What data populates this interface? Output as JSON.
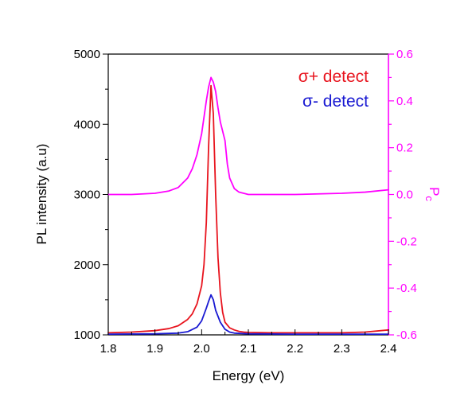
{
  "chart_data": {
    "type": "line",
    "xlabel": "Energy (eV)",
    "ylabel_left": "PL intensity (a.u)",
    "ylabel_right": "P",
    "ylabel_right_sub": "c",
    "xlim": [
      1.8,
      2.4
    ],
    "ylim_left": [
      1000,
      5000
    ],
    "ylim_right": [
      -0.6,
      0.6
    ],
    "x_ticks": [
      "1.8",
      "1.9",
      "2.0",
      "2.1",
      "2.2",
      "2.3",
      "2.4"
    ],
    "y_ticks_left": [
      "1000",
      "2000",
      "3000",
      "4000",
      "5000"
    ],
    "y_ticks_right": [
      "-0.6",
      "-0.4",
      "-0.2",
      "0.0",
      "0.2",
      "0.4",
      "0.6"
    ],
    "colors": {
      "sigma_plus": "#e8141e",
      "sigma_minus": "#1a1ad2",
      "pc": "#ff00ff",
      "axis": "#000000"
    },
    "legend": [
      {
        "label": "σ+ detect",
        "color": "#e8141e"
      },
      {
        "label": "σ-  detect",
        "color": "#1a1ad2"
      }
    ],
    "series": [
      {
        "name": "σ+ detect",
        "axis": "left",
        "x": [
          1.8,
          1.85,
          1.9,
          1.93,
          1.95,
          1.97,
          1.98,
          1.99,
          2.0,
          2.005,
          2.01,
          2.015,
          2.02,
          2.025,
          2.03,
          2.035,
          2.04,
          2.045,
          2.05,
          2.06,
          2.07,
          2.08,
          2.09,
          2.1,
          2.15,
          2.2,
          2.3,
          2.35,
          2.4
        ],
        "y": [
          1030,
          1040,
          1060,
          1090,
          1130,
          1220,
          1300,
          1440,
          1700,
          2000,
          2600,
          3700,
          4550,
          4150,
          3000,
          2100,
          1600,
          1320,
          1180,
          1100,
          1070,
          1050,
          1040,
          1035,
          1030,
          1030,
          1030,
          1040,
          1070
        ]
      },
      {
        "name": "σ-  detect",
        "axis": "left",
        "x": [
          1.8,
          1.9,
          1.95,
          1.97,
          1.99,
          2.0,
          2.01,
          2.015,
          2.02,
          2.025,
          2.03,
          2.04,
          2.05,
          2.06,
          2.07,
          2.1,
          2.2,
          2.4
        ],
        "y": [
          1010,
          1015,
          1025,
          1045,
          1110,
          1200,
          1380,
          1480,
          1570,
          1500,
          1350,
          1180,
          1080,
          1040,
          1025,
          1015,
          1010,
          1010
        ]
      },
      {
        "name": "P",
        "axis": "right",
        "x": [
          1.8,
          1.85,
          1.9,
          1.93,
          1.95,
          1.97,
          1.98,
          1.99,
          2.0,
          2.01,
          2.015,
          2.02,
          2.025,
          2.03,
          2.035,
          2.04,
          2.05,
          2.055,
          2.06,
          2.07,
          2.08,
          2.09,
          2.1,
          2.15,
          2.2,
          2.3,
          2.35,
          2.4
        ],
        "y": [
          0.0,
          0.0,
          0.005,
          0.015,
          0.03,
          0.07,
          0.11,
          0.17,
          0.26,
          0.4,
          0.46,
          0.5,
          0.48,
          0.44,
          0.37,
          0.31,
          0.23,
          0.13,
          0.07,
          0.025,
          0.01,
          0.005,
          0.0,
          0.0,
          0.0,
          0.005,
          0.01,
          0.02
        ]
      }
    ]
  }
}
